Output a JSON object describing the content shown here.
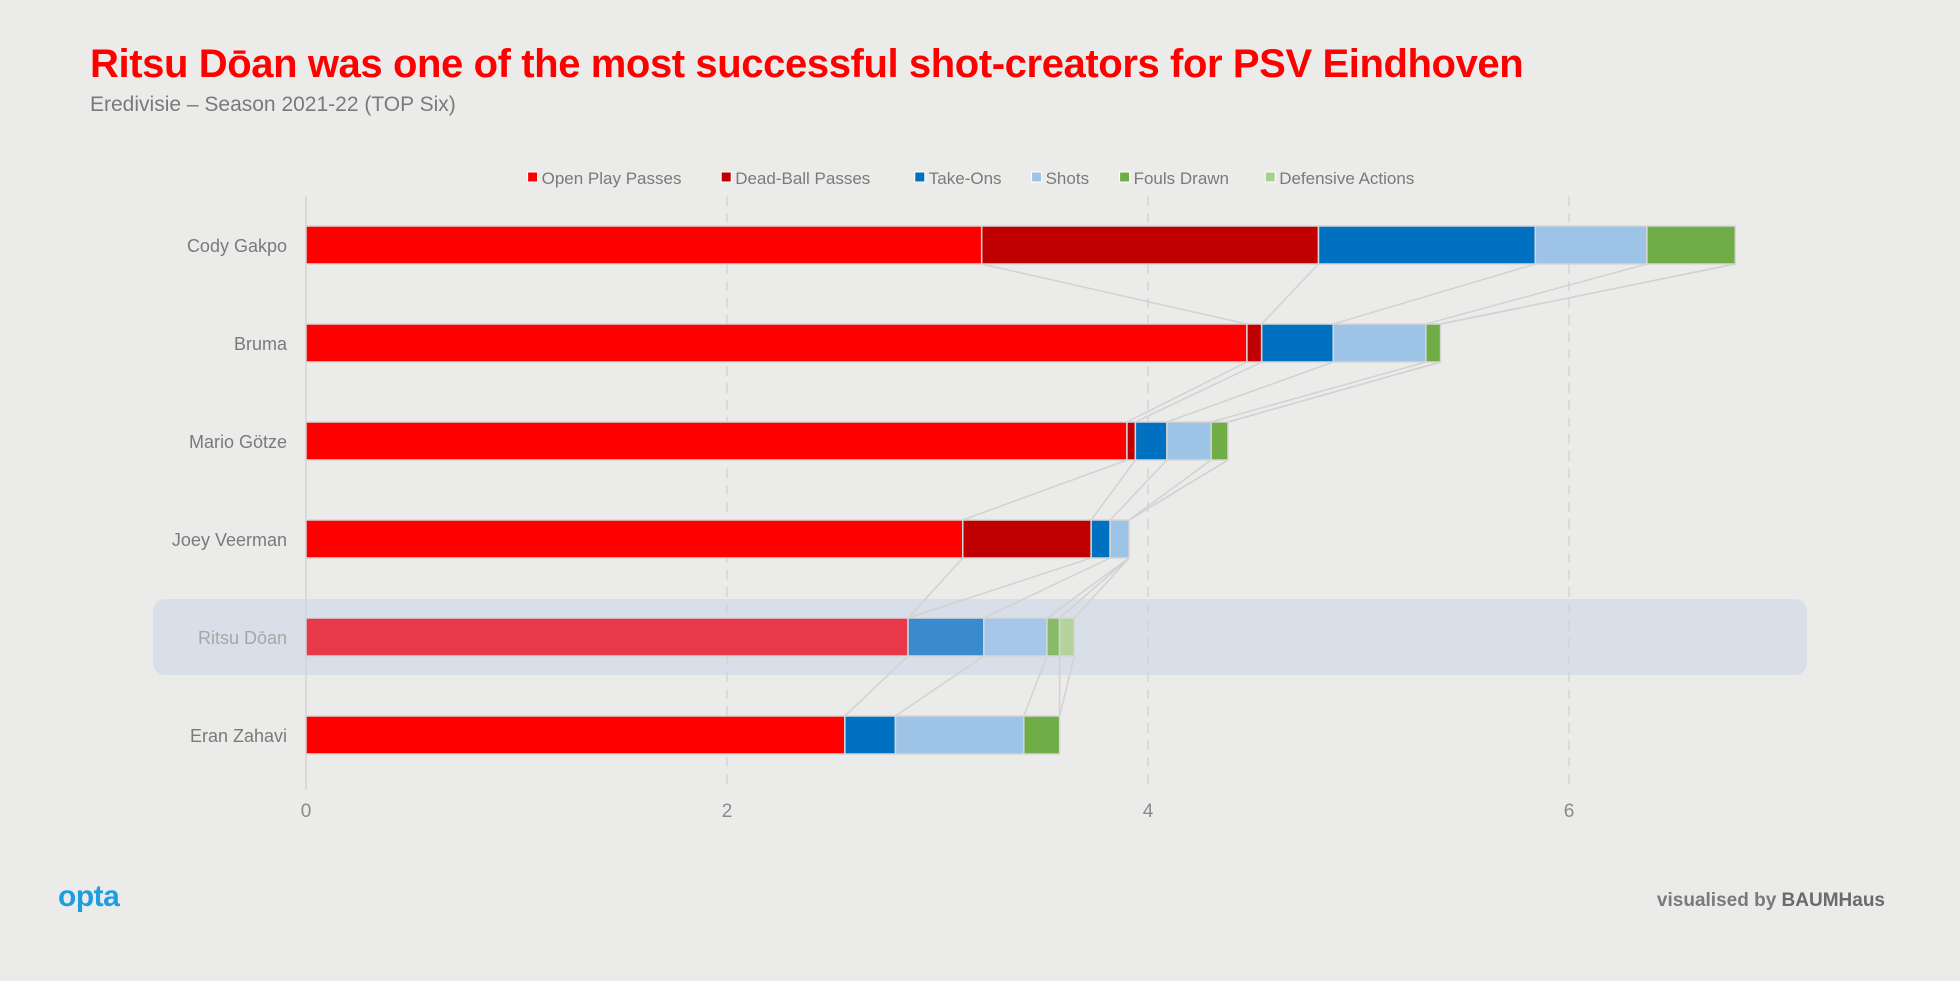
{
  "header": {
    "title": "Ritsu Dōan was one of the most successful shot-creators for PSV Eindhoven",
    "subtitle": "Eredivisie – Season 2021-22 (TOP Six)"
  },
  "footer": {
    "logo_text": "opta",
    "credit_prefix": "visualised by ",
    "credit_brand": "BAUMHaus"
  },
  "chart_data": {
    "type": "bar",
    "orientation": "horizontal",
    "stacked": true,
    "title": "Ritsu Dōan was one of the most successful shot-creators for PSV Eindhoven",
    "subtitle": "Eredivisie – Season 2021-22 (TOP Six)",
    "xlabel": "",
    "ylabel": "",
    "xlim": [
      0,
      7
    ],
    "xticks": [
      0,
      2,
      4,
      6
    ],
    "grid": true,
    "legend_position": "top",
    "highlight": "Ritsu Dōan",
    "categories": [
      "Cody Gakpo",
      "Bruma",
      "Mario Götze",
      "Joey Veerman",
      "Ritsu Dōan",
      "Eran Zahavi"
    ],
    "series": [
      {
        "name": "Open Play Passes",
        "color": "#ff0000",
        "values": [
          3.21,
          4.47,
          3.9,
          3.12,
          2.86,
          2.56
        ]
      },
      {
        "name": "Dead-Ball Passes",
        "color": "#c00000",
        "values": [
          1.6,
          0.07,
          0.04,
          0.61,
          0.0,
          0.0
        ]
      },
      {
        "name": "Take-Ons",
        "color": "#0070c0",
        "values": [
          1.03,
          0.34,
          0.15,
          0.09,
          0.36,
          0.24
        ]
      },
      {
        "name": "Shots",
        "color": "#9dc3e6",
        "values": [
          0.53,
          0.44,
          0.21,
          0.09,
          0.3,
          0.61
        ]
      },
      {
        "name": "Fouls Drawn",
        "color": "#70ad47",
        "values": [
          0.42,
          0.07,
          0.08,
          0.0,
          0.06,
          0.17
        ]
      },
      {
        "name": "Defensive Actions",
        "color": "#a9d18e",
        "values": [
          0.0,
          0.0,
          0.0,
          0.0,
          0.07,
          0.0
        ]
      }
    ]
  }
}
